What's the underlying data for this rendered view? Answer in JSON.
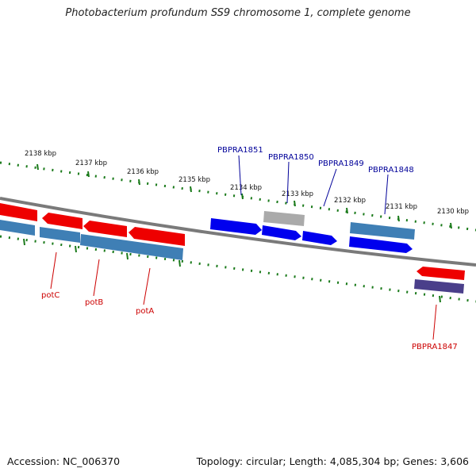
{
  "title": "Photobacterium profundum SS9 chromosome 1, complete genome",
  "footer": {
    "accession": "Accession: NC_006370",
    "summary": "Topology: circular; Length: 4,085,304 bp; Genes: 3,606"
  },
  "colors": {
    "backbone": "#7a7a7a",
    "tick": "#1a7a1a",
    "forward_gene": "#0000ee",
    "reverse_gene": "#ee0000",
    "cds_blue": "#3f7fb5",
    "pseudo_gray": "#aaaaaa",
    "other_purple": "#4a3f8a",
    "label_blue": "#000099",
    "label_red": "#cc0000"
  },
  "scale_labels": [
    "2138 kbp",
    "2137 kbp",
    "2136 kbp",
    "2135 kbp",
    "2134 kbp",
    "2133 kbp",
    "2132 kbp",
    "2131 kbp",
    "2130 kbp"
  ],
  "gene_labels_top": [
    "PBPRA1851",
    "PBPRA1850",
    "PBPRA1849",
    "PBPRA1848"
  ],
  "gene_labels_bottom": [
    "potC",
    "potB",
    "potA",
    "PBPRA1847"
  ]
}
